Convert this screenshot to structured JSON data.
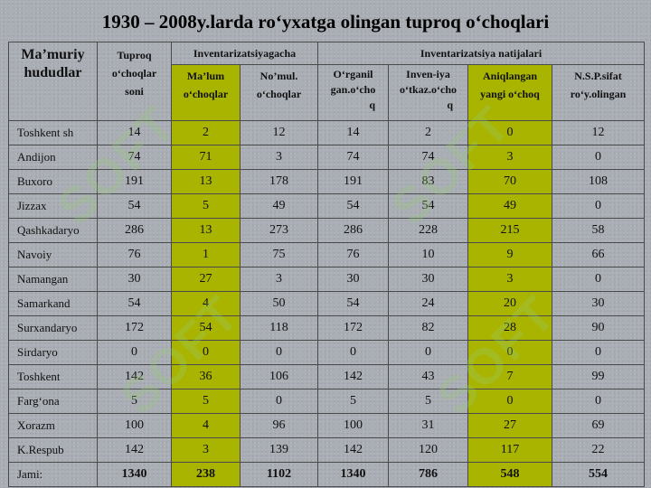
{
  "title": "1930 – 2008y.larda ro‘yxatga olingan tuproq o‘choqlari",
  "header": {
    "region_line1": "Ma’muriy",
    "region_line2": "hududlar",
    "count_line1": "Tuproq",
    "count_line2": "o‘choqlar",
    "count_line3": "soni",
    "inventory_group": "Inventarizatsiyagacha",
    "results_group": "Inventarizatsiya natijalari",
    "known_line1": "Ma’lum",
    "known_line2": "o‘choqlar",
    "unknown_line1": "No’mul.",
    "unknown_line2": "o‘choqlar",
    "studied_line1": "O‘rganil",
    "studied_line2": "gan.o‘cho",
    "studied_line3": "q",
    "invalid_line1": "Inven-iya",
    "invalid_line2": "o‘tkaz.o‘cho",
    "invalid_line3": "q",
    "new_line1": "Aniqlangan",
    "new_line2": "yangi o‘choq",
    "nsp_line1": "N.S.P.sifat",
    "nsp_line2": "ro‘y.olingan"
  },
  "rows": [
    {
      "name": "Toshkent sh",
      "total": "14",
      "known": "2",
      "unknown": "12",
      "studied": "14",
      "invalid": "2",
      "new": "0",
      "nsp": "12"
    },
    {
      "name": "Andijon",
      "total": "74",
      "known": "71",
      "unknown": "3",
      "studied": "74",
      "invalid": "74",
      "new": "3",
      "nsp": "0"
    },
    {
      "name": "Buxoro",
      "total": "191",
      "known": "13",
      "unknown": "178",
      "studied": "191",
      "invalid": "83",
      "new": "70",
      "nsp": "108"
    },
    {
      "name": "Jizzax",
      "total": "54",
      "known": "5",
      "unknown": "49",
      "studied": "54",
      "invalid": "54",
      "new": "49",
      "nsp": "0"
    },
    {
      "name": "Qashkadaryo",
      "total": "286",
      "known": "13",
      "unknown": "273",
      "studied": "286",
      "invalid": "228",
      "new": "215",
      "nsp": "58"
    },
    {
      "name": "Navoiy",
      "total": "76",
      "known": "1",
      "unknown": "75",
      "studied": "76",
      "invalid": "10",
      "new": "9",
      "nsp": "66"
    },
    {
      "name": "Namangan",
      "total": "30",
      "known": "27",
      "unknown": "3",
      "studied": "30",
      "invalid": "30",
      "new": "3",
      "nsp": "0"
    },
    {
      "name": "Samarkand",
      "total": "54",
      "known": "4",
      "unknown": "50",
      "studied": "54",
      "invalid": "24",
      "new": "20",
      "nsp": "30"
    },
    {
      "name": "Surxandaryo",
      "total": "172",
      "known": "54",
      "unknown": "118",
      "studied": "172",
      "invalid": "82",
      "new": "28",
      "nsp": "90"
    },
    {
      "name": "Sirdaryo",
      "total": "0",
      "known": "0",
      "unknown": "0",
      "studied": "0",
      "invalid": "0",
      "new": "0",
      "nsp": "0"
    },
    {
      "name": "Toshkent",
      "total": "142",
      "known": "36",
      "unknown": "106",
      "studied": "142",
      "invalid": "43",
      "new": "7",
      "nsp": "99"
    },
    {
      "name": "Farg‘ona",
      "total": "5",
      "known": "5",
      "unknown": "0",
      "studied": "5",
      "invalid": "5",
      "new": "0",
      "nsp": "0"
    },
    {
      "name": "Xorazm",
      "total": "100",
      "known": "4",
      "unknown": "96",
      "studied": "100",
      "invalid": "31",
      "new": "27",
      "nsp": "69"
    },
    {
      "name": "K.Respub",
      "total": "142",
      "known": "3",
      "unknown": "139",
      "studied": "142",
      "invalid": "120",
      "new": "117",
      "nsp": "22"
    }
  ],
  "total_row": {
    "name": "Jami:",
    "total": "1340",
    "known": "238",
    "unknown": "1102",
    "studied": "1340",
    "invalid": "786",
    "new": "548",
    "nsp": "554"
  },
  "watermark_text": "SOFT",
  "colors": {
    "highlight": "#a8b400",
    "background": "#a9adb4",
    "border": "#4a4a4a"
  }
}
